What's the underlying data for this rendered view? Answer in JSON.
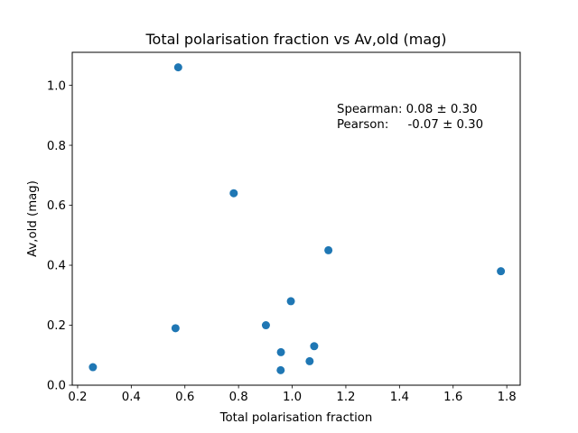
{
  "chart_data": {
    "type": "scatter",
    "title": "Total polarisation fraction vs Av,old (mag)",
    "xlabel": "Total polarisation fraction",
    "ylabel": "Av,old (mag)",
    "xlim": [
      0.18,
      1.85
    ],
    "ylim": [
      0.0,
      1.11
    ],
    "xticks": [
      0.2,
      0.4,
      0.6,
      0.8,
      1.0,
      1.2,
      1.4,
      1.6,
      1.8
    ],
    "xtick_labels": [
      "0.2",
      "0.4",
      "0.6",
      "0.8",
      "1.0",
      "1.2",
      "1.4",
      "1.6",
      "1.8"
    ],
    "yticks": [
      0.0,
      0.2,
      0.4,
      0.6,
      0.8,
      1.0
    ],
    "ytick_labels": [
      "0.0",
      "0.2",
      "0.4",
      "0.6",
      "0.8",
      "1.0"
    ],
    "grid": false,
    "marker_color": "#1f77b4",
    "series": [
      {
        "name": "data",
        "x": [
          0.575,
          0.782,
          1.135,
          1.778,
          0.995,
          0.902,
          0.565,
          1.082,
          0.958,
          1.065,
          0.257,
          0.957
        ],
        "y": [
          1.06,
          0.64,
          0.45,
          0.38,
          0.28,
          0.2,
          0.19,
          0.13,
          0.11,
          0.08,
          0.06,
          0.05
        ]
      }
    ],
    "annotations": [
      {
        "text": "Spearman: 0.08 ± 0.30"
      },
      {
        "text": "Pearson:     -0.07 ± 0.30"
      }
    ]
  }
}
